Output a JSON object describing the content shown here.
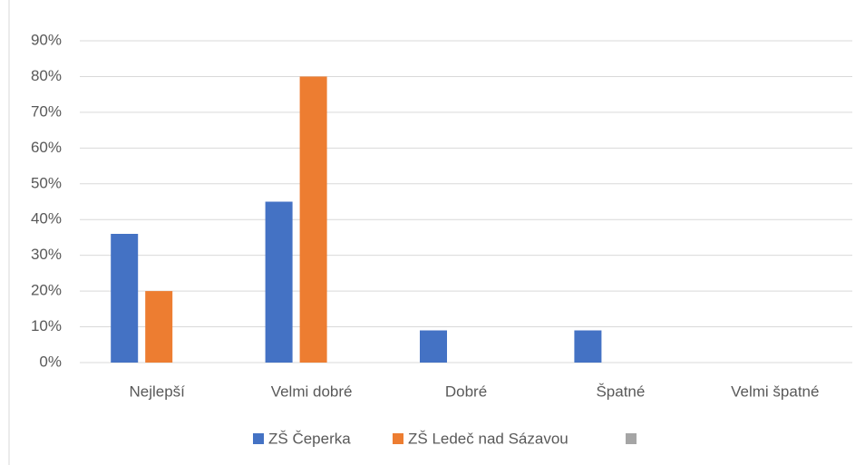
{
  "chart_data": {
    "type": "bar",
    "categories": [
      "Nejlepší",
      "Velmi dobré",
      "Dobré",
      "Špatné",
      "Velmi špatné"
    ],
    "series": [
      {
        "name": "ZŠ Čeperka",
        "color": "#4472c4",
        "values": [
          36,
          45,
          9,
          9,
          0
        ]
      },
      {
        "name": "ZŠ Ledeč nad Sázavou",
        "color": "#ed7d31",
        "values": [
          20,
          80,
          0,
          0,
          0
        ]
      }
    ],
    "ylim": [
      0,
      90
    ],
    "yticks": [
      {
        "value": 0,
        "label": "0%"
      },
      {
        "value": 10,
        "label": "10%"
      },
      {
        "value": 20,
        "label": "20%"
      },
      {
        "value": 30,
        "label": "30%"
      },
      {
        "value": 40,
        "label": "40%"
      },
      {
        "value": 50,
        "label": "50%"
      },
      {
        "value": 60,
        "label": "60%"
      },
      {
        "value": 70,
        "label": "70%"
      },
      {
        "value": 80,
        "label": "80%"
      },
      {
        "value": 90,
        "label": "90%"
      }
    ],
    "grid": true,
    "legend": "bottom"
  }
}
